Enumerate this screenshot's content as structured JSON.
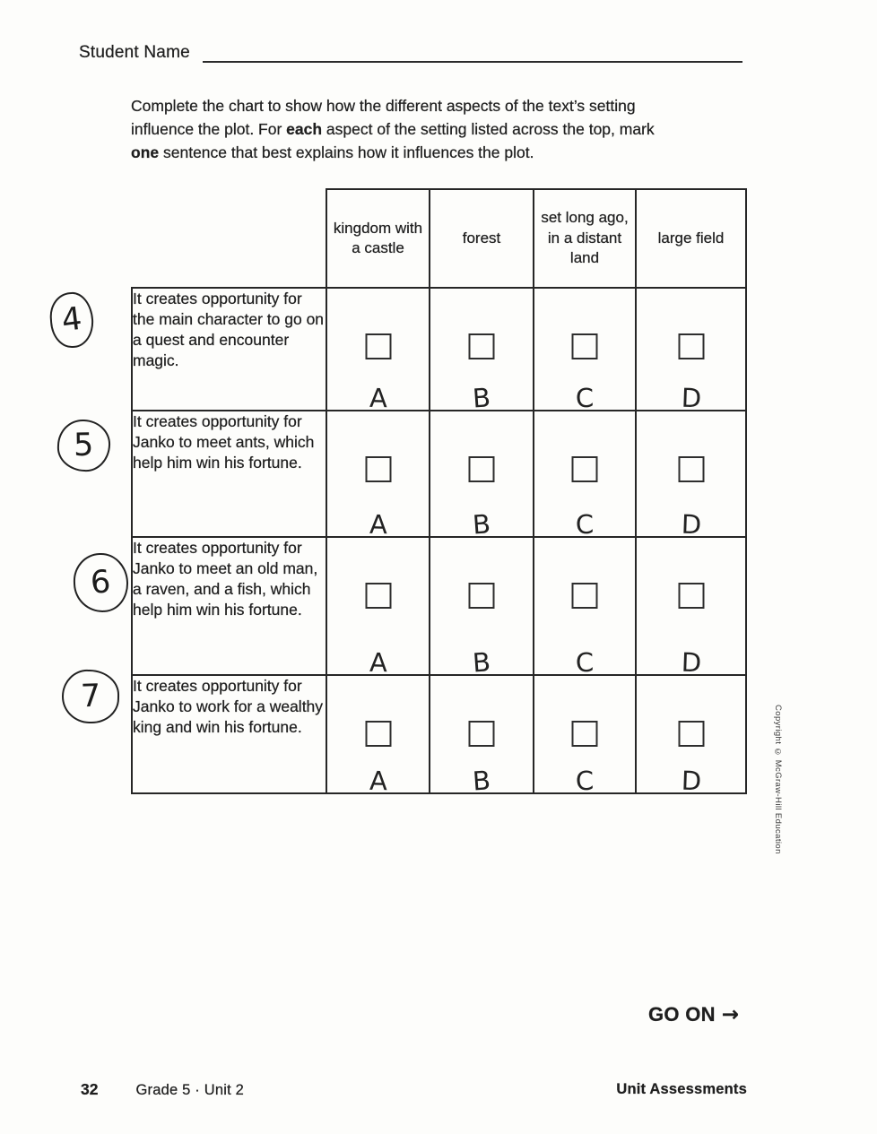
{
  "page": {
    "student_name_label": "Student Name"
  },
  "instructions": {
    "lines": [
      [
        {
          "text": "Complete the chart to show how the different aspects of the text’s setting",
          "bold": false
        }
      ],
      [
        {
          "text": "influence the plot. For ",
          "bold": false
        },
        {
          "text": "each",
          "bold": true
        },
        {
          "text": " aspect of the setting listed across the top, mark",
          "bold": false
        }
      ],
      [
        {
          "text": "one",
          "bold": true
        },
        {
          "text": " sentence that best explains how it influences the plot.",
          "bold": false
        }
      ]
    ]
  },
  "table": {
    "column_headers": [
      "kingdom with a castle",
      "forest",
      "set long ago, in a distant land",
      "large field"
    ],
    "questions": [
      {
        "number": "4",
        "statement": "It creates opportunity for the main character to go on a quest and encounter magic.",
        "options": [
          "A",
          "B",
          "C",
          "D"
        ],
        "checked": [
          false,
          false,
          false,
          false
        ]
      },
      {
        "number": "5",
        "statement": "It creates opportunity for Janko to meet ants, which help him win his fortune.",
        "options": [
          "A",
          "B",
          "C",
          "D"
        ],
        "checked": [
          false,
          false,
          false,
          false
        ]
      },
      {
        "number": "6",
        "statement": "It creates opportunity for Janko to meet an old man, a raven, and a fish, which help him win his fortune.",
        "options": [
          "A",
          "B",
          "C",
          "D"
        ],
        "checked": [
          false,
          false,
          false,
          false
        ]
      },
      {
        "number": "7",
        "statement": "It creates opportunity for Janko to work for a wealthy king and win his fortune.",
        "options": [
          "A",
          "B",
          "C",
          "D"
        ],
        "checked": [
          false,
          false,
          false,
          false
        ]
      }
    ]
  },
  "navigation": {
    "go_on_label": "GO ON",
    "arrow": "→"
  },
  "footer": {
    "page_number": "32",
    "course_unit": "Grade 5 · Unit 2",
    "right_label": "Unit Assessments"
  },
  "sidebar": {
    "copyright": "Copyright © McGraw-Hill Education"
  },
  "colors": {
    "ink": "#1f1f1f",
    "paper": "#fdfdfb",
    "border": "#262626"
  }
}
